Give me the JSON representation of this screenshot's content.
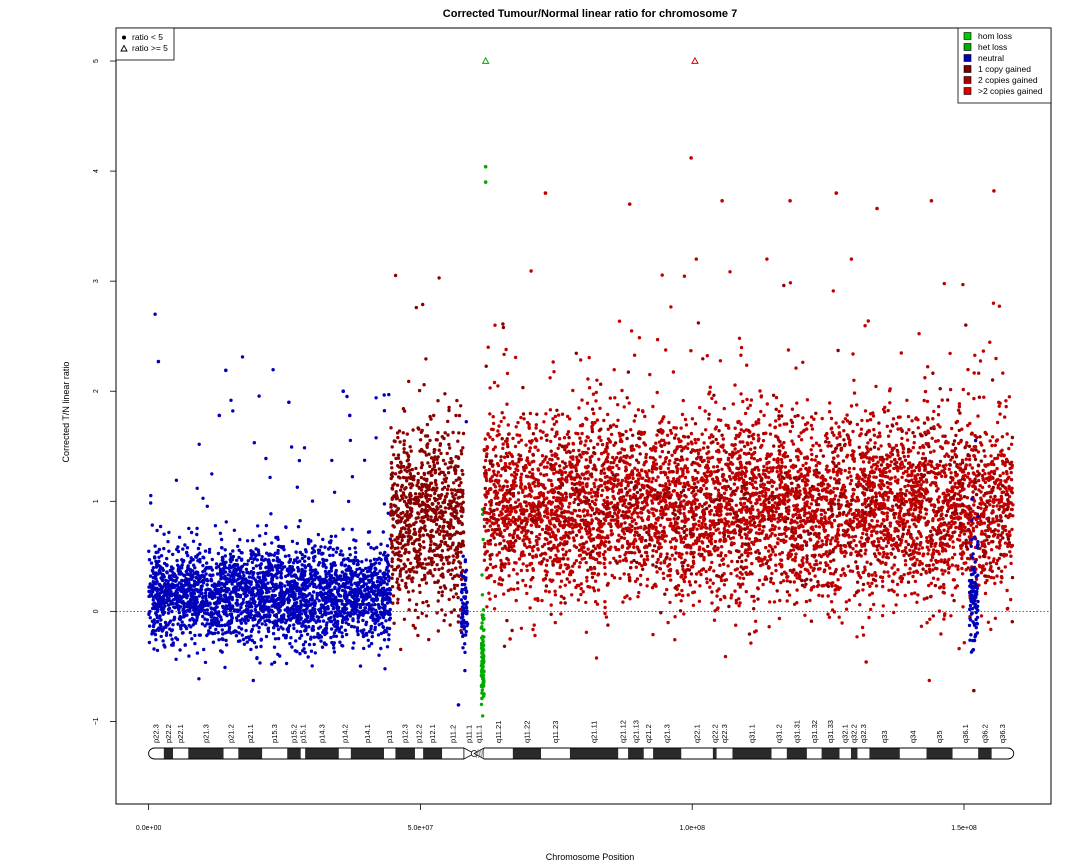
{
  "chart_data": {
    "type": "scatter",
    "title": "Corrected Tumour/Normal linear ratio for chromosome  7",
    "xlabel": "Chromosome Position",
    "ylabel": "Corrected T/N linear ratio",
    "xlim": [
      -6000000,
      166000000
    ],
    "ylim": [
      -1.75,
      5.3
    ],
    "x_ticks": [
      0,
      50000000,
      100000000,
      150000000
    ],
    "x_tick_labels": [
      "0.0e+00",
      "5.0e+07",
      "1.0e+08",
      "1.5e+08"
    ],
    "y_ticks": [
      -1,
      0,
      1,
      2,
      3,
      4,
      5
    ],
    "y_tick_labels": [
      "−1",
      "0",
      "1",
      "2",
      "3",
      "4",
      "5"
    ],
    "reference_line_y": 0,
    "shape_legend": {
      "placement": "top-left",
      "items": [
        {
          "label": "ratio < 5",
          "shape": "dot"
        },
        {
          "label": "ratio >= 5",
          "shape": "triangle"
        }
      ]
    },
    "legend": {
      "placement": "top-right",
      "items": [
        {
          "label": "hom loss",
          "color": "#00cc00"
        },
        {
          "label": "het loss",
          "color": "#00aa00"
        },
        {
          "label": "neutral",
          "color": "#0000bb"
        },
        {
          "label": "1 copy gained",
          "color": "#770000"
        },
        {
          "label": "2 copies gained",
          "color": "#aa0000"
        },
        {
          "label": ">2 copies gained",
          "color": "#dd0000"
        }
      ]
    },
    "segments": [
      {
        "state": "neutral",
        "x_start": 0,
        "x_end": 44500000,
        "center": 0.15,
        "color": "#0000bb"
      },
      {
        "state": "neutral",
        "x_start": 57500000,
        "x_end": 58700000,
        "center": 0.0,
        "color": "#0000bb"
      },
      {
        "state": "1 copy gained",
        "x_start": 44500000,
        "x_end": 58000000,
        "center": 0.85,
        "color": "#880000"
      },
      {
        "state": "het loss",
        "x_start": 61200000,
        "x_end": 61700000,
        "center": -0.4,
        "color": "#00aa00"
      },
      {
        "state": "2 copies gained",
        "x_start": 61700000,
        "x_end": 159000000,
        "center": 0.95,
        "color": "#c00000"
      },
      {
        "state": "neutral",
        "x_start": 151000000,
        "x_end": 152600000,
        "center": 0.1,
        "color": "#0000bb"
      }
    ],
    "outliers": [
      {
        "x": 62000000,
        "y": 5,
        "shape": "triangle",
        "color": "#00aa00"
      },
      {
        "x": 100500000,
        "y": 5,
        "shape": "triangle",
        "color": "#dd0000"
      },
      {
        "x": 62000000,
        "y": 4.04,
        "shape": "dot",
        "color": "#00aa00"
      },
      {
        "x": 62000000,
        "y": 3.9,
        "shape": "dot",
        "color": "#00aa00"
      },
      {
        "x": 99800000,
        "y": 4.12,
        "shape": "dot",
        "color": "#c00000"
      },
      {
        "x": 1800000,
        "y": 2.27,
        "shape": "dot",
        "color": "#0000bb"
      },
      {
        "x": 14200000,
        "y": 2.19,
        "shape": "dot",
        "color": "#0000bb"
      },
      {
        "x": 25800000,
        "y": 1.9,
        "shape": "dot",
        "color": "#0000bb"
      },
      {
        "x": 35800000,
        "y": 2.0,
        "shape": "dot",
        "color": "#0000bb"
      },
      {
        "x": 13000000,
        "y": 1.78,
        "shape": "dot",
        "color": "#0000bb"
      },
      {
        "x": 37000000,
        "y": 1.78,
        "shape": "dot",
        "color": "#0000bb"
      },
      {
        "x": 73000000,
        "y": 3.8,
        "shape": "dot",
        "color": "#c00000"
      },
      {
        "x": 118000000,
        "y": 3.73,
        "shape": "dot",
        "color": "#c00000"
      },
      {
        "x": 126500000,
        "y": 3.8,
        "shape": "dot",
        "color": "#c00000"
      },
      {
        "x": 144000000,
        "y": 3.73,
        "shape": "dot",
        "color": "#c00000"
      },
      {
        "x": 155500000,
        "y": 3.82,
        "shape": "dot",
        "color": "#c00000"
      },
      {
        "x": 88500000,
        "y": 3.7,
        "shape": "dot",
        "color": "#c00000"
      },
      {
        "x": 105500000,
        "y": 3.73,
        "shape": "dot",
        "color": "#c00000"
      },
      {
        "x": 134000000,
        "y": 3.66,
        "shape": "dot",
        "color": "#c00000"
      },
      {
        "x": 57000000,
        "y": -0.85,
        "shape": "dot",
        "color": "#0000bb"
      },
      {
        "x": 151800000,
        "y": -0.72,
        "shape": "dot",
        "color": "#880000"
      },
      {
        "x": 66500000,
        "y": -0.25,
        "shape": "dot",
        "color": "#c00000"
      },
      {
        "x": 132000000,
        "y": -0.46,
        "shape": "dot",
        "color": "#c00000"
      }
    ],
    "cytobands": [
      {
        "name": "p22.3",
        "start": 0,
        "end": 2800000,
        "stain": "white"
      },
      {
        "name": "p22.2",
        "start": 2800000,
        "end": 4500000,
        "stain": "black"
      },
      {
        "name": "p22.1",
        "start": 4500000,
        "end": 7300000,
        "stain": "white"
      },
      {
        "name": "",
        "start": 7300000,
        "end": 13800000,
        "stain": "black"
      },
      {
        "name": "p21.3",
        "start": 7300000,
        "end": 13800000,
        "stain": "none"
      },
      {
        "name": "p21.2",
        "start": 13800000,
        "end": 16500000,
        "stain": "white"
      },
      {
        "name": "p21.1",
        "start": 16500000,
        "end": 20900000,
        "stain": "black"
      },
      {
        "name": "",
        "start": 20900000,
        "end": 25500000,
        "stain": "white"
      },
      {
        "name": "p15.3",
        "start": 20900000,
        "end": 25500000,
        "stain": "none"
      },
      {
        "name": "p15.2",
        "start": 25500000,
        "end": 28000000,
        "stain": "black"
      },
      {
        "name": "p15.1",
        "start": 28000000,
        "end": 28800000,
        "stain": "white"
      },
      {
        "name": "",
        "start": 28800000,
        "end": 35000000,
        "stain": "black"
      },
      {
        "name": "p14.3",
        "start": 28800000,
        "end": 35000000,
        "stain": "none"
      },
      {
        "name": "p14.2",
        "start": 35000000,
        "end": 37200000,
        "stain": "white"
      },
      {
        "name": "p14.1",
        "start": 37200000,
        "end": 43300000,
        "stain": "black"
      },
      {
        "name": "p13",
        "start": 43300000,
        "end": 45400000,
        "stain": "white"
      },
      {
        "name": "",
        "start": 45400000,
        "end": 49000000,
        "stain": "black"
      },
      {
        "name": "p12.3",
        "start": 45400000,
        "end": 49000000,
        "stain": "none"
      },
      {
        "name": "p12.2",
        "start": 49000000,
        "end": 50500000,
        "stain": "white"
      },
      {
        "name": "p12.1",
        "start": 50500000,
        "end": 54000000,
        "stain": "black"
      },
      {
        "name": "p11.2",
        "start": 54000000,
        "end": 58000000,
        "stain": "white"
      },
      {
        "name": "p11.1",
        "start": 58000000,
        "end": 59900000,
        "stain": "centromere"
      },
      {
        "name": "q11.1",
        "start": 59900000,
        "end": 61700000,
        "stain": "hatched"
      },
      {
        "name": "q11.21",
        "start": 61700000,
        "end": 67000000,
        "stain": "white"
      },
      {
        "name": "q11.22",
        "start": 67000000,
        "end": 72200000,
        "stain": "black"
      },
      {
        "name": "q11.23",
        "start": 72200000,
        "end": 77500000,
        "stain": "white"
      },
      {
        "name": "q21.11",
        "start": 77500000,
        "end": 86400000,
        "stain": "black"
      },
      {
        "name": "q21.12",
        "start": 86400000,
        "end": 88200000,
        "stain": "white"
      },
      {
        "name": "q21.13",
        "start": 88200000,
        "end": 91100000,
        "stain": "black"
      },
      {
        "name": "q21.2",
        "start": 91100000,
        "end": 92800000,
        "stain": "white"
      },
      {
        "name": "q21.3",
        "start": 92800000,
        "end": 98000000,
        "stain": "black"
      },
      {
        "name": "q22.1",
        "start": 98000000,
        "end": 103800000,
        "stain": "white"
      },
      {
        "name": "q22.2",
        "start": 103800000,
        "end": 104500000,
        "stain": "black"
      },
      {
        "name": "q22.3",
        "start": 104500000,
        "end": 107400000,
        "stain": "white"
      },
      {
        "name": "q31.1",
        "start": 107400000,
        "end": 114600000,
        "stain": "black"
      },
      {
        "name": "q31.2",
        "start": 114600000,
        "end": 117400000,
        "stain": "white"
      },
      {
        "name": "q31.31",
        "start": 117400000,
        "end": 121100000,
        "stain": "black"
      },
      {
        "name": "q31.32",
        "start": 121100000,
        "end": 123800000,
        "stain": "white"
      },
      {
        "name": "q31.33",
        "start": 123800000,
        "end": 127100000,
        "stain": "black"
      },
      {
        "name": "q32.1",
        "start": 127100000,
        "end": 129200000,
        "stain": "white"
      },
      {
        "name": "q32.2",
        "start": 129200000,
        "end": 130400000,
        "stain": "black"
      },
      {
        "name": "q32.3",
        "start": 130400000,
        "end": 132600000,
        "stain": "white"
      },
      {
        "name": "q33",
        "start": 132600000,
        "end": 138200000,
        "stain": "black"
      },
      {
        "name": "q34",
        "start": 138200000,
        "end": 143100000,
        "stain": "white"
      },
      {
        "name": "q35",
        "start": 143100000,
        "end": 147900000,
        "stain": "black"
      },
      {
        "name": "q36.1",
        "start": 147900000,
        "end": 152600000,
        "stain": "white"
      },
      {
        "name": "q36.2",
        "start": 152600000,
        "end": 155100000,
        "stain": "black"
      },
      {
        "name": "q36.3",
        "start": 155100000,
        "end": 159138663,
        "stain": "white"
      }
    ]
  }
}
